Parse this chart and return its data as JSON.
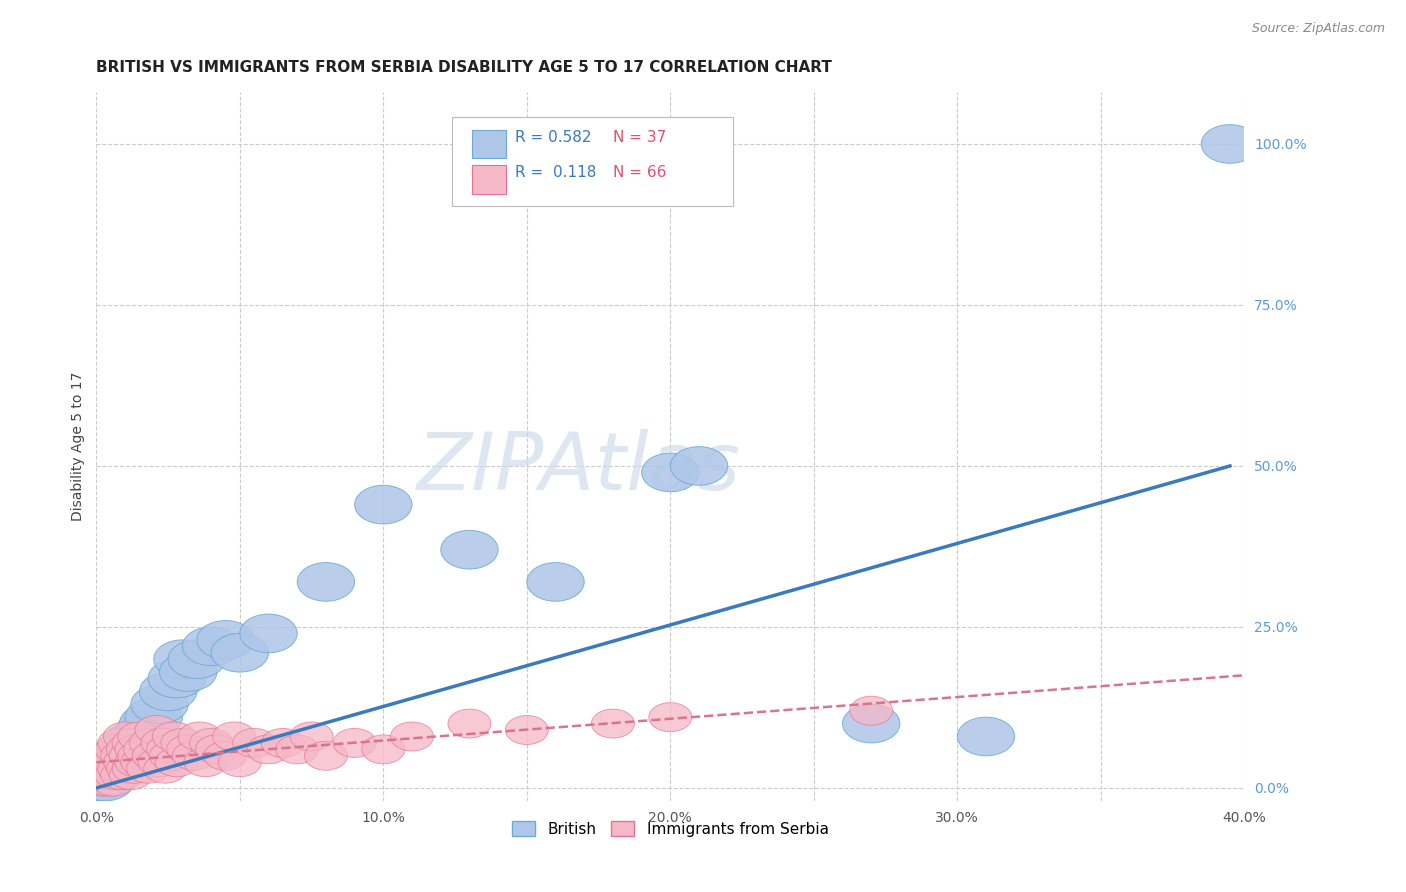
{
  "title": "BRITISH VS IMMIGRANTS FROM SERBIA DISABILITY AGE 5 TO 17 CORRELATION CHART",
  "source": "Source: ZipAtlas.com",
  "ylabel": "Disability Age 5 to 17",
  "xlim": [
    0.0,
    0.4
  ],
  "ylim": [
    -0.02,
    1.08
  ],
  "xticks": [
    0.0,
    0.05,
    0.1,
    0.15,
    0.2,
    0.25,
    0.3,
    0.35,
    0.4
  ],
  "xtick_labels": [
    "0.0%",
    "",
    "10.0%",
    "",
    "20.0%",
    "",
    "30.0%",
    "",
    "40.0%"
  ],
  "yticks": [
    0.0,
    0.25,
    0.5,
    0.75,
    1.0
  ],
  "ytick_labels": [
    "0.0%",
    "25.0%",
    "50.0%",
    "75.0%",
    "100.0%"
  ],
  "ytick_color": "#5b9bd5",
  "grid_color": "#cccccc",
  "bg_color": "#ffffff",
  "british_color": "#aec6e8",
  "british_edge_color": "#6aaad4",
  "serbia_color": "#f4b8c8",
  "serbia_edge_color": "#e87090",
  "blue_line_color": "#3a7abf",
  "pink_line_color": "#d9748a",
  "R_british": 0.582,
  "N_british": 37,
  "R_serbia": 0.118,
  "N_serbia": 66,
  "watermark": "ZIPAtlas",
  "watermark_color": "#c8d8e8",
  "legend_R_color": "#3a7abf",
  "legend_N_color": "#e05070",
  "british_x": [
    0.001,
    0.002,
    0.003,
    0.004,
    0.005,
    0.006,
    0.007,
    0.008,
    0.009,
    0.01,
    0.011,
    0.012,
    0.013,
    0.015,
    0.016,
    0.017,
    0.018,
    0.02,
    0.022,
    0.025,
    0.028,
    0.03,
    0.032,
    0.035,
    0.04,
    0.045,
    0.05,
    0.06,
    0.08,
    0.1,
    0.13,
    0.16,
    0.2,
    0.21,
    0.27,
    0.31,
    0.395
  ],
  "british_y": [
    0.01,
    0.02,
    0.01,
    0.03,
    0.02,
    0.04,
    0.03,
    0.05,
    0.04,
    0.06,
    0.05,
    0.07,
    0.06,
    0.08,
    0.07,
    0.09,
    0.1,
    0.11,
    0.13,
    0.15,
    0.17,
    0.2,
    0.18,
    0.2,
    0.22,
    0.23,
    0.21,
    0.24,
    0.32,
    0.44,
    0.37,
    0.32,
    0.49,
    0.5,
    0.1,
    0.08,
    1.0
  ],
  "serbia_x": [
    0.001,
    0.002,
    0.002,
    0.003,
    0.003,
    0.004,
    0.004,
    0.005,
    0.005,
    0.006,
    0.006,
    0.007,
    0.007,
    0.008,
    0.008,
    0.009,
    0.009,
    0.01,
    0.01,
    0.011,
    0.011,
    0.012,
    0.012,
    0.013,
    0.013,
    0.014,
    0.014,
    0.015,
    0.015,
    0.016,
    0.017,
    0.018,
    0.019,
    0.02,
    0.021,
    0.022,
    0.023,
    0.024,
    0.025,
    0.026,
    0.027,
    0.028,
    0.03,
    0.032,
    0.034,
    0.036,
    0.038,
    0.04,
    0.042,
    0.045,
    0.048,
    0.05,
    0.055,
    0.06,
    0.065,
    0.07,
    0.075,
    0.08,
    0.09,
    0.1,
    0.11,
    0.13,
    0.15,
    0.18,
    0.2,
    0.27
  ],
  "serbia_y": [
    0.02,
    0.01,
    0.03,
    0.02,
    0.04,
    0.01,
    0.03,
    0.02,
    0.05,
    0.01,
    0.04,
    0.02,
    0.06,
    0.03,
    0.07,
    0.02,
    0.05,
    0.04,
    0.08,
    0.03,
    0.06,
    0.02,
    0.05,
    0.07,
    0.03,
    0.04,
    0.06,
    0.05,
    0.08,
    0.04,
    0.06,
    0.03,
    0.07,
    0.05,
    0.09,
    0.04,
    0.07,
    0.03,
    0.06,
    0.05,
    0.08,
    0.04,
    0.07,
    0.06,
    0.05,
    0.08,
    0.04,
    0.07,
    0.06,
    0.05,
    0.08,
    0.04,
    0.07,
    0.06,
    0.07,
    0.06,
    0.08,
    0.05,
    0.07,
    0.06,
    0.08,
    0.1,
    0.09,
    0.1,
    0.11,
    0.12
  ],
  "title_fontsize": 11,
  "axis_label_fontsize": 10,
  "tick_fontsize": 10,
  "legend_fontsize": 11,
  "blue_line_x": [
    0.0,
    0.395
  ],
  "blue_line_y": [
    0.0,
    0.5
  ],
  "pink_line_x": [
    0.0,
    0.4
  ],
  "pink_line_y": [
    0.04,
    0.175
  ]
}
